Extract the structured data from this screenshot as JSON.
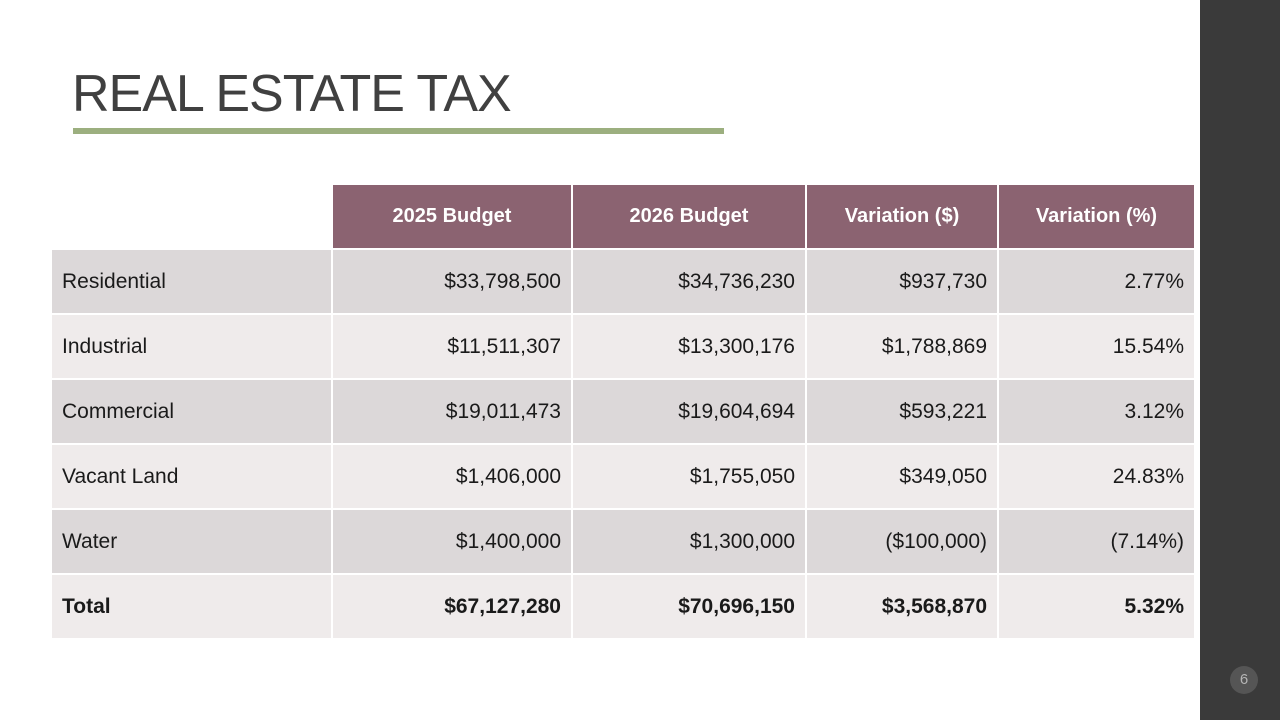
{
  "slide": {
    "title": "REAL ESTATE TAX",
    "page_number": "6"
  },
  "colors": {
    "header_fill": "#8b6371",
    "title_rule": "#9caf7f",
    "row_dark": "#dcd8d9",
    "row_light": "#efebeb",
    "side_panel": "#3a3a3a"
  },
  "table": {
    "columns": [
      "",
      "2025 Budget",
      "2026 Budget",
      "Variation ($)",
      "Variation (%)"
    ],
    "rows": [
      {
        "label": "Residential",
        "budget_2025": "$33,798,500",
        "budget_2026": "$34,736,230",
        "variation_dollars": "$937,730",
        "variation_percent": "2.77%"
      },
      {
        "label": "Industrial",
        "budget_2025": "$11,511,307",
        "budget_2026": "$13,300,176",
        "variation_dollars": "$1,788,869",
        "variation_percent": "15.54%"
      },
      {
        "label": "Commercial",
        "budget_2025": "$19,011,473",
        "budget_2026": "$19,604,694",
        "variation_dollars": "$593,221",
        "variation_percent": "3.12%"
      },
      {
        "label": "Vacant Land",
        "budget_2025": "$1,406,000",
        "budget_2026": "$1,755,050",
        "variation_dollars": "$349,050",
        "variation_percent": "24.83%"
      },
      {
        "label": "Water",
        "budget_2025": "$1,400,000",
        "budget_2026": "$1,300,000",
        "variation_dollars": "($100,000)",
        "variation_percent": "(7.14%)"
      },
      {
        "label": "Total",
        "budget_2025": "$67,127,280",
        "budget_2026": "$70,696,150",
        "variation_dollars": "$3,568,870",
        "variation_percent": "5.32%"
      }
    ]
  }
}
